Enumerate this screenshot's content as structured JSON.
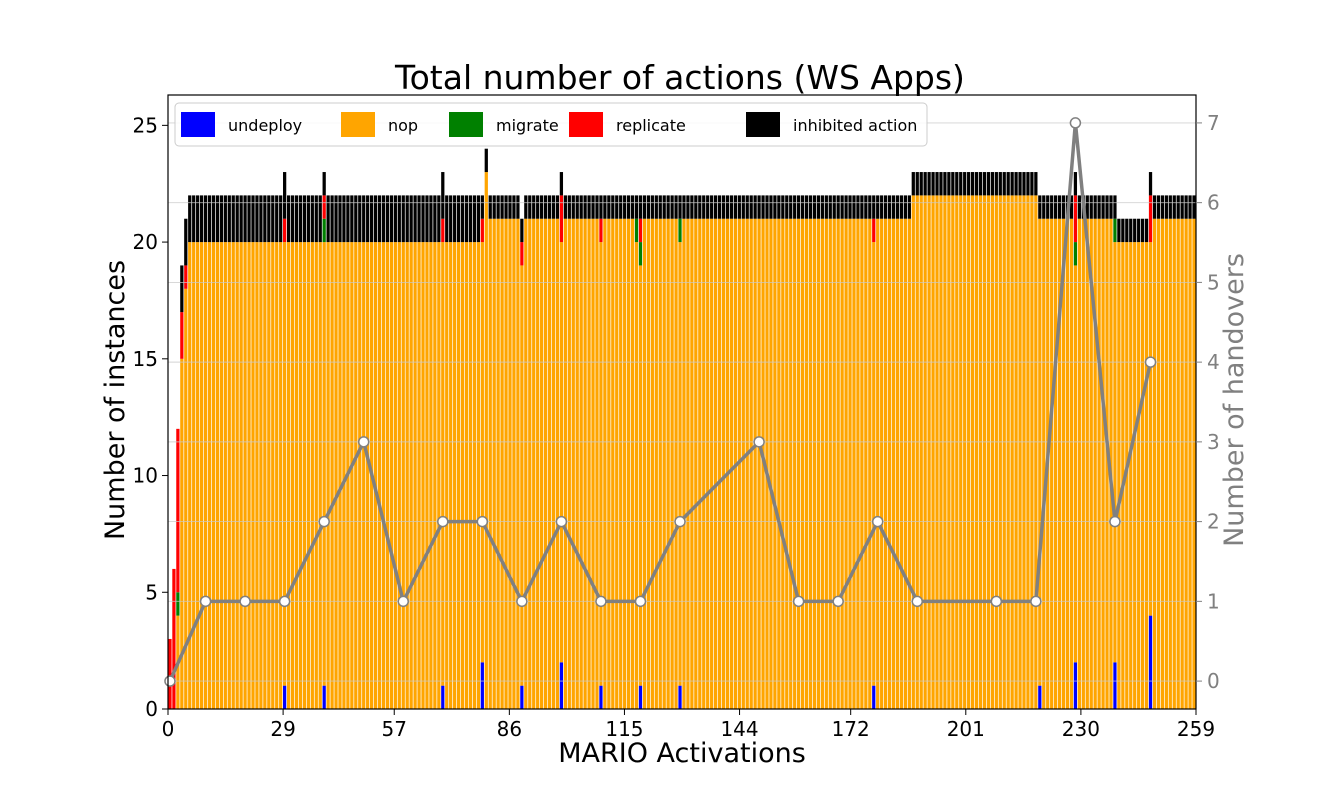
{
  "chart_data": {
    "type": "bar",
    "title": "Total number of actions (WS Apps)",
    "xlabel": "MARIO Activations",
    "ylabel": "Number of instances",
    "y2label": "Number of handovers",
    "x_ticks": [
      0,
      29,
      57,
      86,
      115,
      144,
      172,
      201,
      230,
      259
    ],
    "y_ticks": [
      0,
      5,
      10,
      15,
      20,
      25
    ],
    "y2_ticks": [
      0,
      1,
      2,
      3,
      4,
      5,
      6,
      7
    ],
    "xlim": [
      0,
      259
    ],
    "ylim": [
      0,
      26.3
    ],
    "y2lim": [
      -0.35,
      7.35
    ],
    "stacked": true,
    "stack_order": [
      "undeploy",
      "nop",
      "migrate",
      "replicate",
      "inhibited action"
    ],
    "grid": true,
    "legend_position": "top",
    "colors": {
      "undeploy": "#0000ff",
      "nop": "#ffa500",
      "migrate": "#008000",
      "replicate": "#ff0000",
      "inhibited action": "#000000",
      "handovers": "#808080"
    },
    "legend": [
      "undeploy",
      "nop",
      "migrate",
      "replicate",
      "inhibited action"
    ],
    "bar_runs": [
      {
        "from": 0,
        "to": 0,
        "undeploy": 0,
        "nop": 0,
        "migrate": 0,
        "replicate": 3,
        "inhibited action": 0
      },
      {
        "from": 1,
        "to": 1,
        "undeploy": 0,
        "nop": 0,
        "migrate": 0,
        "replicate": 6,
        "inhibited action": 0
      },
      {
        "from": 2,
        "to": 2,
        "undeploy": 0,
        "nop": 4,
        "migrate": 1,
        "replicate": 7,
        "inhibited action": 0
      },
      {
        "from": 3,
        "to": 3,
        "undeploy": 0,
        "nop": 15,
        "migrate": 0,
        "replicate": 2,
        "inhibited action": 2
      },
      {
        "from": 4,
        "to": 4,
        "undeploy": 0,
        "nop": 18,
        "migrate": 0,
        "replicate": 1,
        "inhibited action": 2
      },
      {
        "from": 5,
        "to": 28,
        "undeploy": 0,
        "nop": 20,
        "migrate": 0,
        "replicate": 0,
        "inhibited action": 2
      },
      {
        "from": 29,
        "to": 29,
        "undeploy": 1,
        "nop": 19,
        "migrate": 0,
        "replicate": 1,
        "inhibited action": 2
      },
      {
        "from": 30,
        "to": 38,
        "undeploy": 0,
        "nop": 20,
        "migrate": 0,
        "replicate": 0,
        "inhibited action": 2
      },
      {
        "from": 39,
        "to": 39,
        "undeploy": 1,
        "nop": 19,
        "migrate": 1,
        "replicate": 1,
        "inhibited action": 1
      },
      {
        "from": 40,
        "to": 68,
        "undeploy": 0,
        "nop": 20,
        "migrate": 0,
        "replicate": 0,
        "inhibited action": 2
      },
      {
        "from": 69,
        "to": 69,
        "undeploy": 1,
        "nop": 19,
        "migrate": 0,
        "replicate": 1,
        "inhibited action": 2
      },
      {
        "from": 70,
        "to": 78,
        "undeploy": 0,
        "nop": 20,
        "migrate": 0,
        "replicate": 0,
        "inhibited action": 2
      },
      {
        "from": 79,
        "to": 79,
        "undeploy": 2,
        "nop": 18,
        "migrate": 0,
        "replicate": 1,
        "inhibited action": 1
      },
      {
        "from": 80,
        "to": 80,
        "undeploy": 0,
        "nop": 23,
        "migrate": 0,
        "replicate": 0,
        "inhibited action": 1
      },
      {
        "from": 81,
        "to": 88,
        "undeploy": 0,
        "nop": 21,
        "migrate": 0,
        "replicate": 0,
        "inhibited action": 1
      },
      {
        "from": 89,
        "to": 89,
        "undeploy": 1,
        "nop": 18,
        "migrate": 0,
        "replicate": 1,
        "inhibited action": 1
      },
      {
        "from": 90,
        "to": 98,
        "undeploy": 0,
        "nop": 21,
        "migrate": 0,
        "replicate": 0,
        "inhibited action": 1
      },
      {
        "from": 99,
        "to": 99,
        "undeploy": 2,
        "nop": 18,
        "migrate": 0,
        "replicate": 2,
        "inhibited action": 1
      },
      {
        "from": 100,
        "to": 108,
        "undeploy": 0,
        "nop": 21,
        "migrate": 0,
        "replicate": 0,
        "inhibited action": 1
      },
      {
        "from": 109,
        "to": 109,
        "undeploy": 1,
        "nop": 19,
        "migrate": 0,
        "replicate": 1,
        "inhibited action": 1
      },
      {
        "from": 110,
        "to": 117,
        "undeploy": 0,
        "nop": 21,
        "migrate": 0,
        "replicate": 0,
        "inhibited action": 1
      },
      {
        "from": 118,
        "to": 118,
        "undeploy": 0,
        "nop": 20,
        "migrate": 1,
        "replicate": 0,
        "inhibited action": 1
      },
      {
        "from": 119,
        "to": 119,
        "undeploy": 1,
        "nop": 18,
        "migrate": 1,
        "replicate": 1,
        "inhibited action": 1
      },
      {
        "from": 120,
        "to": 128,
        "undeploy": 0,
        "nop": 21,
        "migrate": 0,
        "replicate": 0,
        "inhibited action": 1
      },
      {
        "from": 129,
        "to": 129,
        "undeploy": 1,
        "nop": 19,
        "migrate": 1,
        "replicate": 0,
        "inhibited action": 1
      },
      {
        "from": 130,
        "to": 177,
        "undeploy": 0,
        "nop": 21,
        "migrate": 0,
        "replicate": 0,
        "inhibited action": 1
      },
      {
        "from": 178,
        "to": 178,
        "undeploy": 1,
        "nop": 19,
        "migrate": 0,
        "replicate": 1,
        "inhibited action": 1
      },
      {
        "from": 179,
        "to": 187,
        "undeploy": 0,
        "nop": 21,
        "migrate": 0,
        "replicate": 0,
        "inhibited action": 1
      },
      {
        "from": 188,
        "to": 219,
        "undeploy": 0,
        "nop": 22,
        "migrate": 0,
        "replicate": 0,
        "inhibited action": 1
      },
      {
        "from": 220,
        "to": 220,
        "undeploy": 1,
        "nop": 20,
        "migrate": 0,
        "replicate": 0,
        "inhibited action": 1
      },
      {
        "from": 221,
        "to": 228,
        "undeploy": 0,
        "nop": 21,
        "migrate": 0,
        "replicate": 0,
        "inhibited action": 1
      },
      {
        "from": 229,
        "to": 229,
        "undeploy": 2,
        "nop": 17,
        "migrate": 1,
        "replicate": 2,
        "inhibited action": 1
      },
      {
        "from": 230,
        "to": 238,
        "undeploy": 0,
        "nop": 21,
        "migrate": 0,
        "replicate": 0,
        "inhibited action": 1
      },
      {
        "from": 239,
        "to": 239,
        "undeploy": 2,
        "nop": 18,
        "migrate": 1,
        "replicate": 0,
        "inhibited action": 1
      },
      {
        "from": 240,
        "to": 247,
        "undeploy": 0,
        "nop": 20,
        "migrate": 0,
        "replicate": 0,
        "inhibited action": 1
      },
      {
        "from": 248,
        "to": 248,
        "undeploy": 4,
        "nop": 16,
        "migrate": 0,
        "replicate": 2,
        "inhibited action": 1
      },
      {
        "from": 249,
        "to": 259,
        "undeploy": 0,
        "nop": 21,
        "migrate": 0,
        "replicate": 0,
        "inhibited action": 1
      }
    ],
    "handovers": {
      "name": "Number of handovers",
      "x": [
        0,
        9,
        19,
        29,
        39,
        49,
        59,
        69,
        79,
        89,
        99,
        109,
        119,
        129,
        149,
        159,
        169,
        179,
        189,
        209,
        219,
        229,
        239,
        248
      ],
      "y": [
        0,
        1,
        1,
        1,
        2,
        3,
        1,
        2,
        2,
        1,
        2,
        1,
        1,
        2,
        3,
        1,
        1,
        2,
        1,
        1,
        1,
        7,
        2,
        4
      ]
    }
  }
}
